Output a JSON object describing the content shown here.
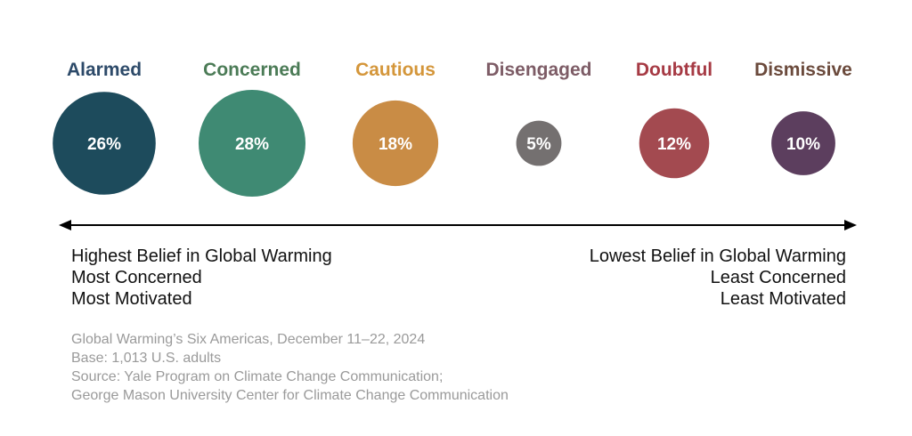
{
  "chart_data": {
    "type": "bubble",
    "categories": [
      "Alarmed",
      "Concerned",
      "Cautious",
      "Disengaged",
      "Doubtful",
      "Dismissive"
    ],
    "values": [
      26,
      28,
      18,
      5,
      12,
      10
    ],
    "value_labels": [
      "26%",
      "28%",
      "18%",
      "5%",
      "12%",
      "10%"
    ],
    "colors": [
      "#1d4b5c",
      "#3f8a73",
      "#c98c45",
      "#747070",
      "#a34a50",
      "#5c3e5e"
    ],
    "label_colors": [
      "#2d4a69",
      "#4b7b56",
      "#d4963a",
      "#7d5c66",
      "#a63a44",
      "#6b4a3c"
    ],
    "axis": {
      "left_labels": [
        "Highest Belief in Global Warming",
        "Most Concerned",
        "Most Motivated"
      ],
      "right_labels": [
        "Lowest Belief in Global Warming",
        "Least Concerned",
        "Least Motivated"
      ]
    },
    "notes": [
      "Global Warming’s Six Americas, December 11–22, 2024",
      "Base: 1,013 U.S. adults",
      "Source: Yale Program on Climate Change Communication;",
      "George Mason University Center for Climate Change Communication"
    ]
  }
}
